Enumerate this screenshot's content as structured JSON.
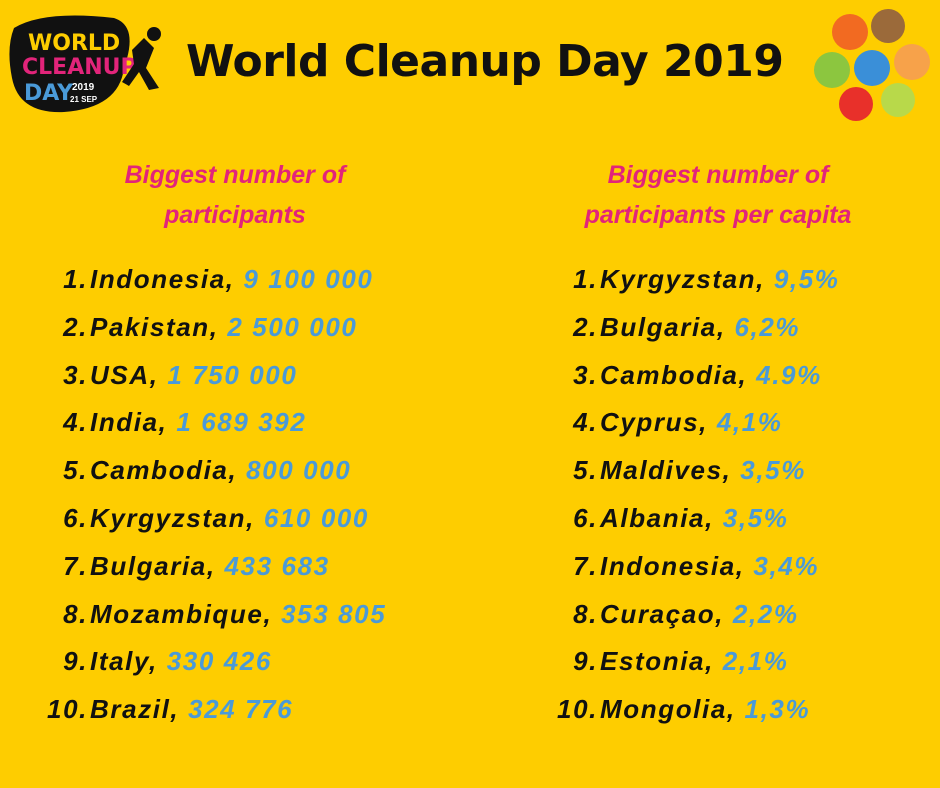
{
  "header": {
    "title": "World Cleanup Day 2019",
    "logo": {
      "line1": "WORLD",
      "line2": "CLEANUP",
      "line3": "DAY",
      "year": "2019",
      "date": "21 SEP"
    }
  },
  "lists": [
    {
      "heading": [
        "Biggest number of",
        "participants"
      ],
      "items": [
        {
          "rank": "1.",
          "country": "Indonesia,",
          "value": "9 100 000"
        },
        {
          "rank": "2.",
          "country": "Pakistan,",
          "value": "2 500 000"
        },
        {
          "rank": "3.",
          "country": "USA,",
          "value": "1 750 000"
        },
        {
          "rank": "4.",
          "country": "India,",
          "value": "1 689 392"
        },
        {
          "rank": "5.",
          "country": "Cambodia,",
          "value": "800 000"
        },
        {
          "rank": "6.",
          "country": "Kyrgyzstan,",
          "value": "610 000"
        },
        {
          "rank": "7.",
          "country": "Bulgaria,",
          "value": "433 683"
        },
        {
          "rank": "8.",
          "country": "Mozambique,",
          "value": "353 805"
        },
        {
          "rank": "9.",
          "country": "Italy,",
          "value": "330 426"
        },
        {
          "rank": "10.",
          "country": "Brazil,",
          "value": "324 776"
        }
      ]
    },
    {
      "heading": [
        "Biggest number of",
        "participants per capita"
      ],
      "items": [
        {
          "rank": "1.",
          "country": "Kyrgyzstan,",
          "value": "9,5%"
        },
        {
          "rank": "2.",
          "country": "Bulgaria,",
          "value": "6,2%"
        },
        {
          "rank": "3.",
          "country": "Cambodia,",
          "value": "4.9%"
        },
        {
          "rank": "4.",
          "country": "Cyprus,",
          "value": "4,1%"
        },
        {
          "rank": "5.",
          "country": "Maldives,",
          "value": "3,5%"
        },
        {
          "rank": "6.",
          "country": "Albania,",
          "value": "3,5%"
        },
        {
          "rank": "7.",
          "country": "Indonesia,",
          "value": "3,4%"
        },
        {
          "rank": "8.",
          "country": "Curaçao,",
          "value": "2,2%"
        },
        {
          "rank": "9.",
          "country": "Estonia,",
          "value": "2,1%"
        },
        {
          "rank": "10.",
          "country": "Mongolia,",
          "value": "1,3%"
        }
      ]
    }
  ]
}
